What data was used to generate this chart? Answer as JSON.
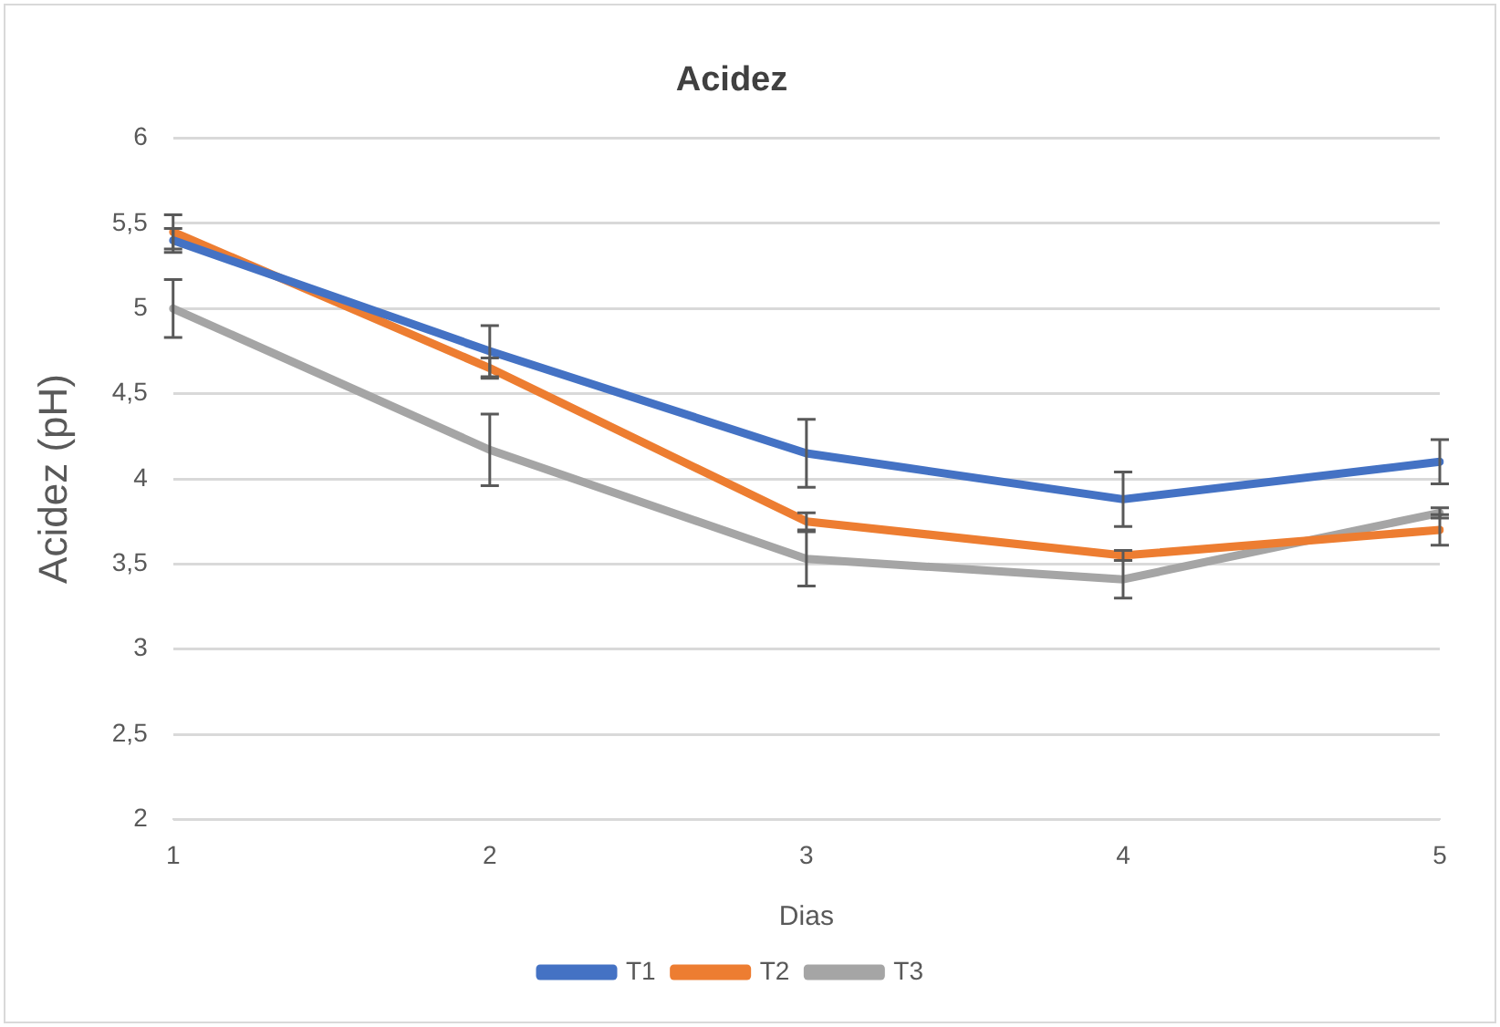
{
  "chart_data": {
    "type": "line",
    "title": "Acidez",
    "xlabel": "Dias",
    "ylabel": "Acidez (pH)",
    "categories": [
      "1",
      "2",
      "3",
      "4",
      "5"
    ],
    "series": [
      {
        "name": "T1",
        "color": "#4472c4",
        "values": [
          5.4,
          4.75,
          4.15,
          3.88,
          4.1
        ],
        "errors": [
          0.07,
          0.15,
          0.2,
          0.16,
          0.13
        ]
      },
      {
        "name": "T2",
        "color": "#ed7d31",
        "values": [
          5.45,
          4.65,
          3.75,
          3.55,
          3.7
        ],
        "errors": [
          0.1,
          0.06,
          0.05,
          0.03,
          0.09
        ]
      },
      {
        "name": "T3",
        "color": "#a5a5a5",
        "values": [
          5.0,
          4.17,
          3.53,
          3.41,
          3.8
        ],
        "errors": [
          0.17,
          0.21,
          0.16,
          0.11,
          0.03
        ]
      }
    ],
    "ylim": [
      2,
      6
    ],
    "yticks": [
      2,
      {
        "value": 2.5,
        "label": "2,5"
      },
      3,
      {
        "value": 3.5,
        "label": "3,5"
      },
      4,
      {
        "value": 4.5,
        "label": "4,5"
      },
      5,
      {
        "value": 5.5,
        "label": "5,5"
      },
      6
    ],
    "grid": "y",
    "legend": "bottom",
    "marker": "none",
    "line_style": "solid"
  }
}
